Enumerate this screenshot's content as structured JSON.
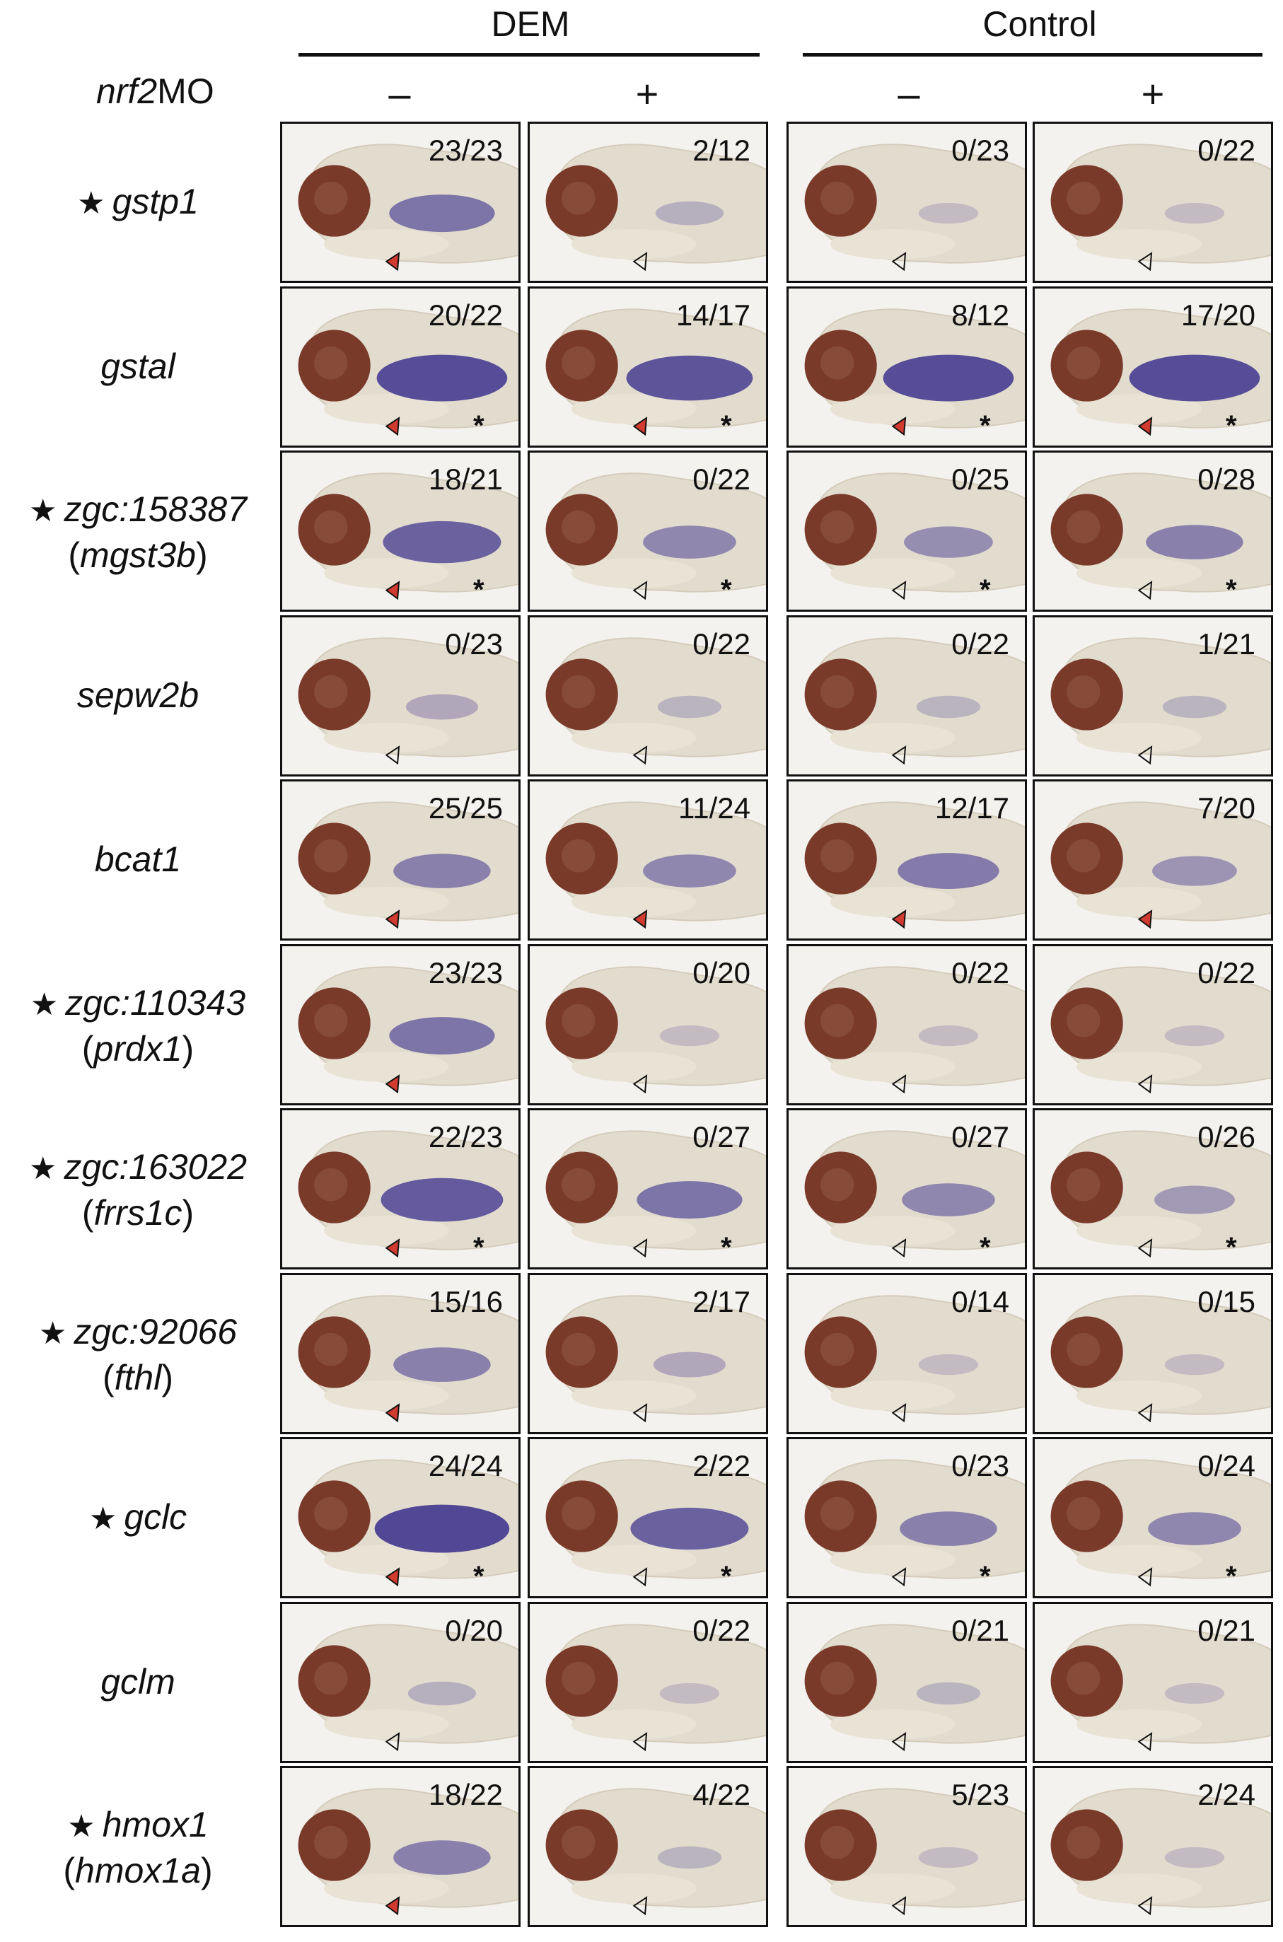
{
  "groups": {
    "dem": "DEM",
    "control": "Control"
  },
  "morpholino": {
    "label_italic": "nrf2",
    "label_rest": "MO",
    "signs": [
      "–",
      "+",
      "–",
      "+"
    ]
  },
  "colors": {
    "stain": "#3a2f8c",
    "eye": "#7a3a2a",
    "filled_arrow": "#d23b2f"
  },
  "rows": [
    {
      "gene": "gstp1",
      "alias": "",
      "star": true,
      "counts": [
        "23/23",
        "2/12",
        "0/23",
        "0/22"
      ],
      "arrow_filled": [
        true,
        false,
        false,
        false
      ],
      "asterisk": [
        false,
        false,
        false,
        false
      ],
      "stain": [
        0.6,
        0.15,
        0.05,
        0.05
      ]
    },
    {
      "gene": "gstal",
      "alias": "",
      "star": false,
      "counts": [
        "20/22",
        "14/17",
        "8/12",
        "17/20"
      ],
      "arrow_filled": [
        true,
        true,
        true,
        true
      ],
      "asterisk": [
        true,
        true,
        true,
        true
      ],
      "stain": [
        0.9,
        0.85,
        0.9,
        0.9
      ]
    },
    {
      "gene": "zgc:158387",
      "alias": "mgst3b",
      "star": true,
      "counts": [
        "18/21",
        "0/22",
        "0/25",
        "0/28"
      ],
      "arrow_filled": [
        true,
        false,
        false,
        false
      ],
      "asterisk": [
        true,
        true,
        true,
        true
      ],
      "stain": [
        0.75,
        0.45,
        0.4,
        0.5
      ]
    },
    {
      "gene": "sepw2b",
      "alias": "",
      "star": false,
      "counts": [
        "0/23",
        "0/22",
        "0/22",
        "1/21"
      ],
      "arrow_filled": [
        false,
        false,
        false,
        false
      ],
      "asterisk": [
        false,
        false,
        false,
        false
      ],
      "stain": [
        0.2,
        0.1,
        0.1,
        0.1
      ]
    },
    {
      "gene": "bcat1",
      "alias": "",
      "star": false,
      "counts": [
        "25/25",
        "11/24",
        "12/17",
        "7/20"
      ],
      "arrow_filled": [
        true,
        true,
        true,
        true
      ],
      "asterisk": [
        false,
        false,
        false,
        false
      ],
      "stain": [
        0.5,
        0.45,
        0.55,
        0.35
      ]
    },
    {
      "gene": "zgc:110343",
      "alias": "prdx1",
      "star": true,
      "counts": [
        "23/23",
        "0/20",
        "0/22",
        "0/22"
      ],
      "arrow_filled": [
        true,
        false,
        false,
        false
      ],
      "asterisk": [
        false,
        false,
        false,
        false
      ],
      "stain": [
        0.6,
        0.05,
        0.05,
        0.05
      ]
    },
    {
      "gene": "zgc:163022",
      "alias": "frrs1c",
      "star": true,
      "counts": [
        "22/23",
        "0/27",
        "0/27",
        "0/26"
      ],
      "arrow_filled": [
        true,
        false,
        false,
        false
      ],
      "asterisk": [
        true,
        true,
        true,
        true
      ],
      "stain": [
        0.8,
        0.6,
        0.45,
        0.3
      ]
    },
    {
      "gene": "zgc:92066",
      "alias": "fthl",
      "star": true,
      "counts": [
        "15/16",
        "2/17",
        "0/14",
        "0/15"
      ],
      "arrow_filled": [
        true,
        false,
        false,
        false
      ],
      "asterisk": [
        false,
        false,
        false,
        false
      ],
      "stain": [
        0.5,
        0.2,
        0.05,
        0.05
      ]
    },
    {
      "gene": "gclc",
      "alias": "",
      "star": true,
      "counts": [
        "24/24",
        "2/22",
        "0/23",
        "0/24"
      ],
      "arrow_filled": [
        true,
        false,
        false,
        false
      ],
      "asterisk": [
        true,
        true,
        true,
        true
      ],
      "stain": [
        0.95,
        0.75,
        0.5,
        0.45
      ]
    },
    {
      "gene": "gclm",
      "alias": "",
      "star": false,
      "counts": [
        "0/20",
        "0/22",
        "0/21",
        "0/21"
      ],
      "arrow_filled": [
        false,
        false,
        false,
        false
      ],
      "asterisk": [
        false,
        false,
        false,
        false
      ],
      "stain": [
        0.15,
        0.05,
        0.1,
        0.05
      ]
    },
    {
      "gene": "hmox1",
      "alias": "hmox1a",
      "star": true,
      "counts": [
        "18/22",
        "4/22",
        "5/23",
        "2/24"
      ],
      "arrow_filled": [
        true,
        false,
        false,
        false
      ],
      "asterisk": [
        false,
        false,
        false,
        false
      ],
      "stain": [
        0.5,
        0.1,
        0.05,
        0.05
      ]
    }
  ]
}
